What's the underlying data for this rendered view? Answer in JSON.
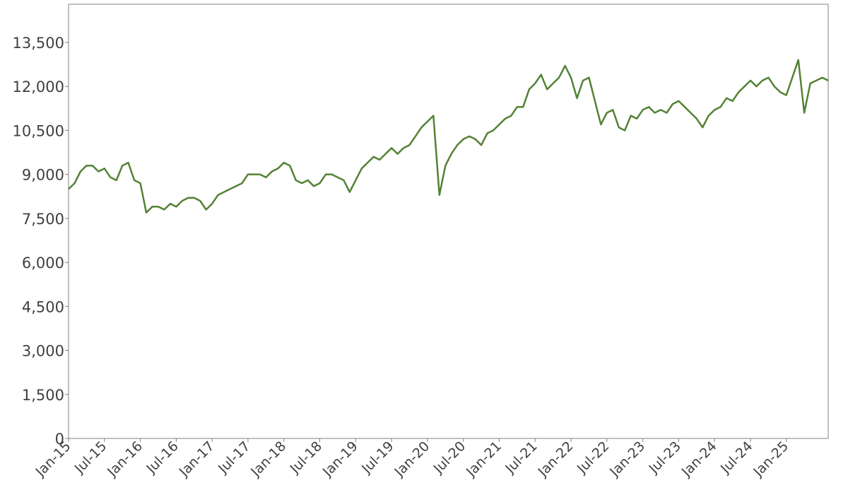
{
  "chart_data": {
    "type": "line",
    "categories": [
      "Jan-15",
      "Feb-15",
      "Mar-15",
      "Apr-15",
      "May-15",
      "Jun-15",
      "Jul-15",
      "Aug-15",
      "Sep-15",
      "Oct-15",
      "Nov-15",
      "Dec-15",
      "Jan-16",
      "Feb-16",
      "Mar-16",
      "Apr-16",
      "May-16",
      "Jun-16",
      "Jul-16",
      "Aug-16",
      "Sep-16",
      "Oct-16",
      "Nov-16",
      "Dec-16",
      "Jan-17",
      "Feb-17",
      "Mar-17",
      "Apr-17",
      "May-17",
      "Jun-17",
      "Jul-17",
      "Aug-17",
      "Sep-17",
      "Oct-17",
      "Nov-17",
      "Dec-17",
      "Jan-18",
      "Feb-18",
      "Mar-18",
      "Apr-18",
      "May-18",
      "Jun-18",
      "Jul-18",
      "Aug-18",
      "Sep-18",
      "Oct-18",
      "Nov-18",
      "Dec-18",
      "Jan-19",
      "Feb-19",
      "Mar-19",
      "Apr-19",
      "May-19",
      "Jun-19",
      "Jul-19",
      "Aug-19",
      "Sep-19",
      "Oct-19",
      "Nov-19",
      "Dec-19",
      "Jan-20",
      "Feb-20",
      "Mar-20",
      "Apr-20",
      "May-20",
      "Jun-20",
      "Jul-20",
      "Aug-20",
      "Sep-20",
      "Oct-20",
      "Nov-20",
      "Dec-20",
      "Jan-21",
      "Feb-21",
      "Mar-21",
      "Apr-21",
      "May-21",
      "Jun-21",
      "Jul-21",
      "Aug-21",
      "Sep-21",
      "Oct-21",
      "Nov-21",
      "Dec-21",
      "Jan-22",
      "Feb-22",
      "Mar-22",
      "Apr-22",
      "May-22",
      "Jun-22",
      "Jul-22",
      "Aug-22",
      "Sep-22",
      "Oct-22",
      "Nov-22",
      "Dec-22",
      "Jan-23",
      "Feb-23",
      "Mar-23",
      "Apr-23",
      "May-23",
      "Jun-23",
      "Jul-23",
      "Aug-23",
      "Sep-23",
      "Oct-23",
      "Nov-23",
      "Dec-23",
      "Jan-24",
      "Feb-24",
      "Mar-24",
      "Apr-24",
      "May-24",
      "Jun-24",
      "Jul-24",
      "Aug-24",
      "Sep-24",
      "Oct-24",
      "Nov-24",
      "Dec-24",
      "Jan-25",
      "Feb-25",
      "Mar-25",
      "Apr-25",
      "May-25",
      "Jun-25",
      "Jul-25",
      "Aug-25"
    ],
    "series": [
      {
        "color": "#548235",
        "values": [
          8500,
          8700,
          9100,
          9300,
          9300,
          9100,
          9200,
          8900,
          8800,
          9300,
          9400,
          8800,
          8700,
          7700,
          7900,
          7900,
          7800,
          8000,
          7900,
          8100,
          8200,
          8200,
          8100,
          7800,
          8000,
          8300,
          8400,
          8500,
          8600,
          8700,
          9000,
          9000,
          9000,
          8900,
          9100,
          9200,
          9400,
          9300,
          8800,
          8700,
          8800,
          8600,
          8700,
          9000,
          9000,
          8900,
          8800,
          8400,
          8800,
          9200,
          9400,
          9600,
          9500,
          9700,
          9900,
          9700,
          9900,
          10000,
          10300,
          10600,
          10800,
          11000,
          8300,
          9300,
          9700,
          10000,
          10200,
          10300,
          10200,
          10000,
          10400,
          10500,
          10700,
          10900,
          11000,
          11300,
          11300,
          11900,
          12100,
          12400,
          11900,
          12100,
          12300,
          12700,
          12300,
          11600,
          12200,
          12300,
          11500,
          10700,
          11100,
          11200,
          10600,
          10500,
          11000,
          10900,
          11200,
          11300,
          11100,
          11200,
          11100,
          11400,
          11500,
          11300,
          11100,
          10900,
          10600,
          11000,
          11200,
          11300,
          11600,
          11500,
          11800,
          12000,
          12200,
          12000,
          12200,
          12300,
          12000,
          11800,
          11700,
          12300,
          12900,
          11100,
          12100,
          12200,
          12300,
          12200
        ]
      }
    ],
    "xticks": [
      "Jan-15",
      "Jul-15",
      "Jan-16",
      "Jul-16",
      "Jan-17",
      "Jul-17",
      "Jan-18",
      "Jul-18",
      "Jan-19",
      "Jul-19",
      "Jan-20",
      "Jul-20",
      "Jan-21",
      "Jul-21",
      "Jan-22",
      "Jul-22",
      "Jan-23",
      "Jul-23",
      "Jan-24",
      "Jul-24",
      "Jan-25"
    ],
    "ylim": [
      0,
      14800
    ],
    "yticks": [
      0,
      {
        "value": 1500,
        "label": "1,500"
      },
      {
        "value": 3000,
        "label": "3,000"
      },
      {
        "value": 4500,
        "label": "4,500"
      },
      {
        "value": 6000,
        "label": "6,000"
      },
      {
        "value": 7500,
        "label": "7,500"
      },
      {
        "value": 9000,
        "label": "9,000"
      },
      {
        "value": 10500,
        "label": "10,500"
      },
      {
        "value": 12000,
        "label": "12,000"
      },
      {
        "value": 13500,
        "label": "13,500"
      }
    ],
    "grid": false
  }
}
